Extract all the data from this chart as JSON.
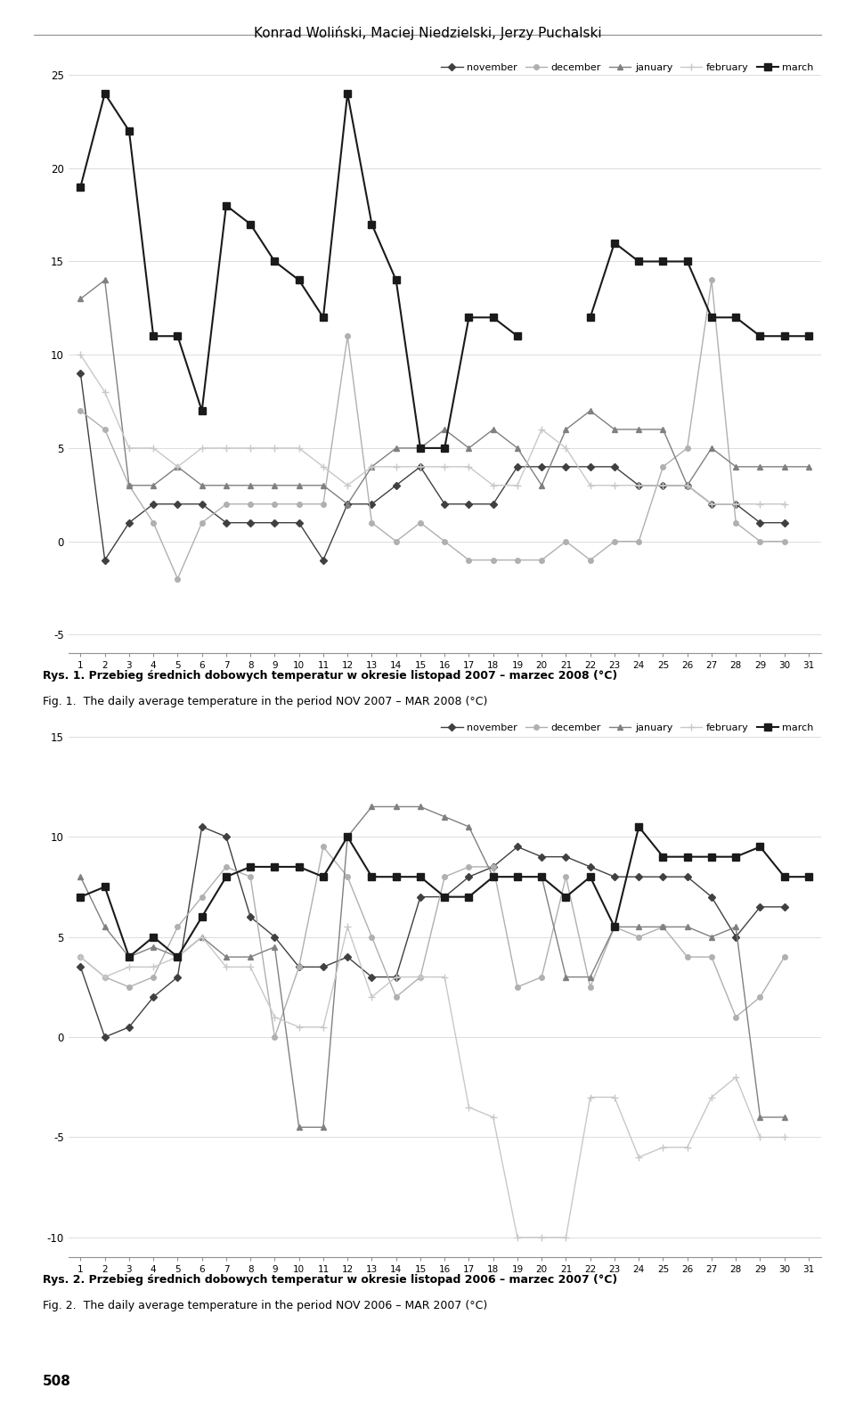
{
  "title": "Konrad Woliński, Maciej Niedzielski, Jerzy Puchalski",
  "days": [
    1,
    2,
    3,
    4,
    5,
    6,
    7,
    8,
    9,
    10,
    11,
    12,
    13,
    14,
    15,
    16,
    17,
    18,
    19,
    20,
    21,
    22,
    23,
    24,
    25,
    26,
    27,
    28,
    29,
    30,
    31
  ],
  "fig1": {
    "caption_pl": "Rys. 1. Przebieg średnich dobowych temperatur w okresie listopad 2007 – marzec 2008 (°C)",
    "caption_en": "Fig. 1.  The daily average temperature in the period NOV 2007 – MAR 2008 (°C)",
    "ylim": [
      -6,
      26
    ],
    "yticks": [
      -5,
      0,
      5,
      10,
      15,
      20,
      25
    ],
    "november": [
      9,
      -1,
      1,
      2,
      2,
      2,
      1,
      1,
      1,
      1,
      -1,
      2,
      2,
      3,
      4,
      2,
      2,
      2,
      4,
      4,
      4,
      4,
      4,
      3,
      3,
      3,
      2,
      2,
      1,
      1,
      null
    ],
    "december": [
      7,
      6,
      3,
      1,
      -2,
      1,
      2,
      2,
      2,
      2,
      2,
      11,
      1,
      0,
      1,
      0,
      -1,
      -1,
      -1,
      -1,
      0,
      -1,
      0,
      0,
      4,
      5,
      14,
      1,
      0,
      0,
      null
    ],
    "january": [
      13,
      14,
      3,
      3,
      4,
      3,
      3,
      3,
      3,
      3,
      3,
      2,
      4,
      5,
      5,
      6,
      5,
      6,
      5,
      3,
      6,
      7,
      6,
      6,
      6,
      3,
      5,
      4,
      4,
      4,
      4
    ],
    "february": [
      10,
      8,
      5,
      5,
      4,
      5,
      5,
      5,
      5,
      5,
      4,
      3,
      4,
      4,
      4,
      4,
      4,
      3,
      3,
      6,
      5,
      3,
      3,
      3,
      3,
      3,
      2,
      2,
      2,
      2,
      null
    ],
    "march": [
      19,
      24,
      22,
      11,
      11,
      7,
      18,
      17,
      15,
      14,
      12,
      24,
      17,
      14,
      5,
      5,
      12,
      12,
      11,
      null,
      null,
      12,
      16,
      15,
      15,
      15,
      12,
      12,
      11,
      11,
      11
    ]
  },
  "fig2": {
    "caption_pl": "Rys. 2. Przebieg średnich dobowych temperatur w okresie listopad 2006 – marzec 2007 (°C)",
    "caption_en": "Fig. 2.  The daily average temperature in the period NOV 2006 – MAR 2007 (°C)",
    "ylim": [
      -11,
      16
    ],
    "yticks": [
      -10,
      -5,
      0,
      5,
      10,
      15
    ],
    "november": [
      3.5,
      0,
      0.5,
      2,
      3,
      10.5,
      10,
      6,
      5,
      3.5,
      3.5,
      4,
      3,
      3,
      7,
      7,
      8,
      8.5,
      9.5,
      9,
      9,
      8.5,
      8,
      8,
      8,
      8,
      7,
      5,
      6.5,
      6.5,
      null
    ],
    "december": [
      4,
      3,
      2.5,
      3,
      5.5,
      7,
      8.5,
      8,
      0,
      3.5,
      9.5,
      8,
      5,
      2,
      3,
      8,
      8.5,
      8.5,
      2.5,
      3,
      8,
      2.5,
      5.5,
      5,
      5.5,
      4,
      4,
      1,
      2,
      4,
      null
    ],
    "january": [
      8,
      5.5,
      4,
      4.5,
      4,
      5,
      4,
      4,
      4.5,
      -4.5,
      -4.5,
      10,
      11.5,
      11.5,
      11.5,
      11,
      10.5,
      8,
      8,
      8,
      3,
      3,
      5.5,
      5.5,
      5.5,
      5.5,
      5,
      5.5,
      -4,
      -4,
      null
    ],
    "february": [
      4,
      3,
      3.5,
      3.5,
      4,
      5,
      3.5,
      3.5,
      1,
      0.5,
      0.5,
      5.5,
      2,
      3,
      3,
      3,
      -3.5,
      -4,
      -10,
      -10,
      -10,
      -3,
      -3,
      -6,
      -5.5,
      -5.5,
      -3,
      -2,
      -5,
      -5,
      null
    ],
    "march": [
      7,
      7.5,
      4,
      5,
      4,
      6,
      8,
      8.5,
      8.5,
      8.5,
      8,
      10,
      8,
      8,
      8,
      7,
      7,
      8,
      8,
      8,
      7,
      8,
      5.5,
      10.5,
      9,
      9,
      9,
      9,
      9.5,
      8,
      8
    ]
  },
  "colors": {
    "november": "#404040",
    "december": "#B0B0B0",
    "january": "#808080",
    "february": "#C8C8C8",
    "march": "#1a1a1a"
  },
  "markers": {
    "november": "D",
    "december": "o",
    "january": "^",
    "february": "+",
    "march": "s"
  },
  "markersizes": {
    "november": 4,
    "december": 4,
    "january": 4,
    "february": 6,
    "march": 6
  },
  "linewidths": {
    "november": 1.0,
    "december": 1.0,
    "january": 1.0,
    "february": 1.0,
    "march": 1.5
  },
  "figsize": [
    9.6,
    15.77
  ],
  "dpi": 100
}
